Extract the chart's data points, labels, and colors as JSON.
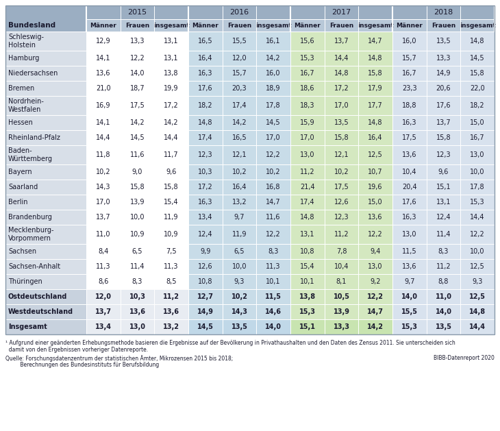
{
  "col_groups": [
    "2015",
    "2016",
    "2017",
    "2018"
  ],
  "col_subheaders": [
    "Männer",
    "Frauen",
    "insgesamt"
  ],
  "row_labels": [
    "Schleswig-\nHolstein",
    "Hamburg",
    "Niedersachsen",
    "Bremen",
    "Nordrhein-\nWestfalen",
    "Hessen",
    "Rheinland-Pfalz",
    "Baden-\nWürttemberg",
    "Bayern",
    "Saarland",
    "Berlin",
    "Brandenburg",
    "Mecklenburg-\nVorpommern",
    "Sachsen",
    "Sachsen-Anhalt",
    "Thüringen",
    "Ostdeutschland",
    "Westdeutschland",
    "Insgesamt"
  ],
  "data": [
    [
      12.9,
      13.3,
      13.1,
      16.5,
      15.5,
      16.1,
      15.6,
      13.7,
      14.7,
      16.0,
      13.5,
      14.8
    ],
    [
      14.1,
      12.2,
      13.1,
      16.4,
      12.0,
      14.2,
      15.3,
      14.4,
      14.8,
      15.7,
      13.3,
      14.5
    ],
    [
      13.6,
      14.0,
      13.8,
      16.3,
      15.7,
      16.0,
      16.7,
      14.8,
      15.8,
      16.7,
      14.9,
      15.8
    ],
    [
      21.0,
      18.7,
      19.9,
      17.6,
      20.3,
      18.9,
      18.6,
      17.2,
      17.9,
      23.3,
      20.6,
      22.0
    ],
    [
      16.9,
      17.5,
      17.2,
      18.2,
      17.4,
      17.8,
      18.3,
      17.0,
      17.7,
      18.8,
      17.6,
      18.2
    ],
    [
      14.1,
      14.2,
      14.2,
      14.8,
      14.2,
      14.5,
      15.9,
      13.5,
      14.8,
      16.3,
      13.7,
      15.0
    ],
    [
      14.4,
      14.5,
      14.4,
      17.4,
      16.5,
      17.0,
      17.0,
      15.8,
      16.4,
      17.5,
      15.8,
      16.7
    ],
    [
      11.8,
      11.6,
      11.7,
      12.3,
      12.1,
      12.2,
      13.0,
      12.1,
      12.5,
      13.6,
      12.3,
      13.0
    ],
    [
      10.2,
      9.0,
      9.6,
      10.3,
      10.2,
      10.2,
      11.2,
      10.2,
      10.7,
      10.4,
      9.6,
      10.0
    ],
    [
      14.3,
      15.8,
      15.8,
      17.2,
      16.4,
      16.8,
      21.4,
      17.5,
      19.6,
      20.4,
      15.1,
      17.8
    ],
    [
      17.0,
      13.9,
      15.4,
      16.3,
      13.2,
      14.7,
      17.4,
      12.6,
      15.0,
      17.6,
      13.1,
      15.3
    ],
    [
      13.7,
      10.0,
      11.9,
      13.4,
      9.7,
      11.6,
      14.8,
      12.3,
      13.6,
      16.3,
      12.4,
      14.4
    ],
    [
      11.0,
      10.9,
      10.9,
      12.4,
      11.9,
      12.2,
      13.1,
      11.2,
      12.2,
      13.0,
      11.4,
      12.2
    ],
    [
      8.4,
      6.5,
      7.5,
      9.9,
      6.5,
      8.3,
      10.8,
      7.8,
      9.4,
      11.5,
      8.3,
      10.0
    ],
    [
      11.3,
      11.4,
      11.3,
      12.6,
      10.0,
      11.3,
      15.4,
      10.4,
      13.0,
      13.6,
      11.2,
      12.5
    ],
    [
      8.6,
      8.3,
      8.5,
      10.8,
      9.3,
      10.1,
      10.1,
      8.1,
      9.2,
      9.7,
      8.8,
      9.3
    ],
    [
      12.0,
      10.3,
      11.2,
      12.7,
      10.2,
      11.5,
      13.8,
      10.5,
      12.2,
      14.0,
      11.0,
      12.5
    ],
    [
      13.7,
      13.6,
      13.6,
      14.9,
      14.3,
      14.6,
      15.3,
      13.9,
      14.7,
      15.5,
      14.0,
      14.8
    ],
    [
      13.4,
      13.0,
      13.2,
      14.5,
      13.5,
      14.0,
      15.1,
      13.3,
      14.2,
      15.3,
      13.5,
      14.4
    ]
  ],
  "bold_rows": [
    16,
    17,
    18
  ],
  "header_bg": "#9baec2",
  "subheader_bg": "#b8c8d8",
  "label_col_bg": "#d8dfe8",
  "col_bg": [
    "#ffffff",
    "#c8dce8",
    "#d4e8c0",
    "#d8e2ee"
  ],
  "bold_row_label_bg": "#c8d2de",
  "bold_row_col_bg": [
    "#e8ecf2",
    "#c8dce8",
    "#d4e8c0",
    "#d8e2ee"
  ],
  "insgesamt_row_col_bg": [
    "#e8ecf2",
    "#c0d8e8",
    "#c8e4b0",
    "#d8e2ee"
  ],
  "footnote1": "¹ Aufgrund einer geänderten Erhebungsmethode basieren die Ergebnisse auf der Bevölkerung in Privathaushalten und den Daten des Zensus 2011. Sie unterscheiden sich",
  "footnote2": "  damit von den Ergebnissen vorheriger Datenreporte.",
  "source1": "Quelle: Forschungsdatenzentrum der statistischen Ämter, Mikrozensen 2015 bis 2018;",
  "source2": "         Berechnungen des Bundesinstituts für Berufsbildung",
  "bibb": "BIBB-Datenreport 2020"
}
